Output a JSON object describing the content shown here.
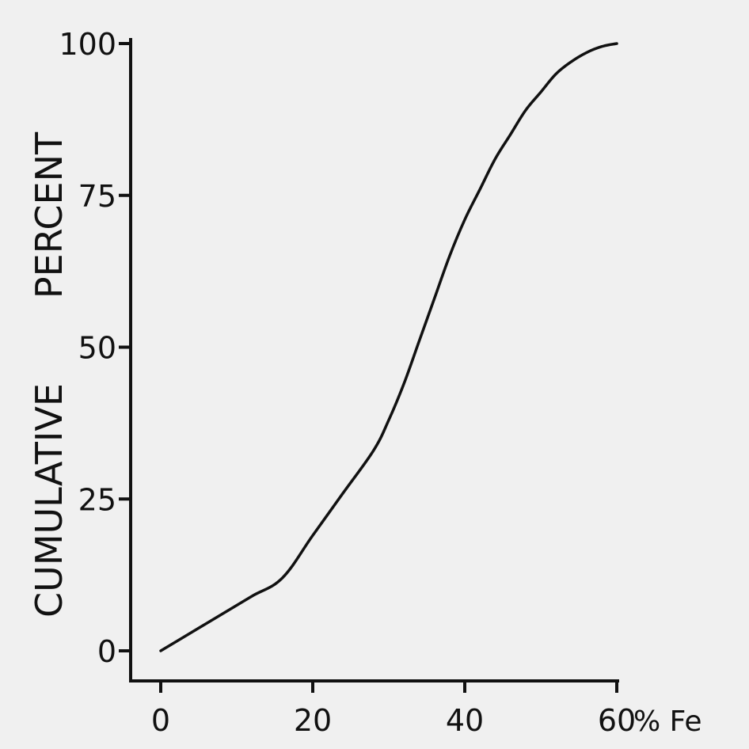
{
  "chart_data": {
    "type": "line",
    "title": "",
    "xlabel": "% Fe",
    "ylabel_parts": [
      "CUMULATIVE",
      "PERCENT"
    ],
    "xlim": [
      0,
      60
    ],
    "ylim": [
      0,
      100
    ],
    "x_ticks": [
      0,
      20,
      40,
      60
    ],
    "x_tick_labels": [
      "0",
      "20",
      "40",
      "60"
    ],
    "y_ticks": [
      0,
      25,
      50,
      75,
      100
    ],
    "y_tick_labels": [
      "0",
      "25",
      "50",
      "75",
      "100"
    ],
    "grid": false,
    "series": [
      {
        "x": [
          0,
          4,
          8,
          12,
          16,
          20,
          24,
          28,
          30,
          32,
          34,
          36,
          38,
          40,
          42,
          44,
          46,
          48,
          50,
          52,
          54,
          56,
          58,
          60
        ],
        "y": [
          0,
          3,
          6,
          9,
          12,
          19,
          26,
          33,
          38,
          44,
          51,
          58,
          65,
          71,
          76,
          81,
          85,
          89,
          92,
          95,
          97,
          98.5,
          99.5,
          100
        ]
      }
    ]
  }
}
